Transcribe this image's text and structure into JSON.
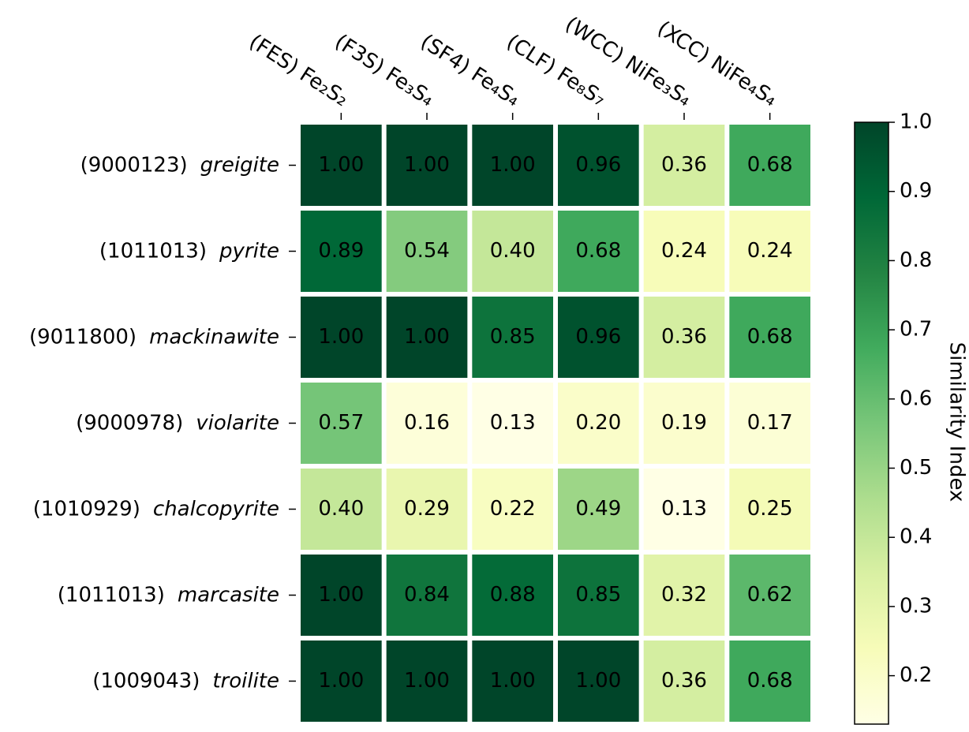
{
  "chart_data": {
    "type": "heatmap",
    "x_categories": [
      "(FES) Fe₂S₂",
      "(F3S) Fe₃S₄",
      "(SF4) Fe₄S₄",
      "(CLF) Fe₈S₇",
      "(WCC) NiFe₃S₄",
      "(XCC) NiFe₄S₄"
    ],
    "y_categories": [
      {
        "id": "(9000123)",
        "name": "greigite"
      },
      {
        "id": "(1011013)",
        "name": "pyrite"
      },
      {
        "id": "(9011800)",
        "name": "mackinawite"
      },
      {
        "id": "(9000978)",
        "name": "violarite"
      },
      {
        "id": "(1010929)",
        "name": "chalcopyrite"
      },
      {
        "id": "(1011013)",
        "name": "marcasite"
      },
      {
        "id": "(1009043)",
        "name": "troilite"
      }
    ],
    "values": [
      [
        1,
        1,
        1,
        0.96,
        0.36,
        0.68
      ],
      [
        0.89,
        0.54,
        0.4,
        0.68,
        0.24,
        0.24
      ],
      [
        1,
        1,
        0.85,
        0.96,
        0.36,
        0.68
      ],
      [
        0.57,
        0.16,
        0.13,
        0.2,
        0.19,
        0.17
      ],
      [
        0.4,
        0.29,
        0.22,
        0.49,
        0.13,
        0.25
      ],
      [
        1,
        0.84,
        0.88,
        0.85,
        0.32,
        0.62
      ],
      [
        1,
        1,
        1,
        1,
        0.36,
        0.68
      ]
    ],
    "value_labels": [
      [
        "1.00",
        "1.00",
        "1.00",
        "0.96",
        "0.36",
        "0.68"
      ],
      [
        "0.89",
        "0.54",
        "0.40",
        "0.68",
        "0.24",
        "0.24"
      ],
      [
        "1.00",
        "1.00",
        "0.85",
        "0.96",
        "0.36",
        "0.68"
      ],
      [
        "0.57",
        "0.16",
        "0.13",
        "0.20",
        "0.19",
        "0.17"
      ],
      [
        "0.40",
        "0.29",
        "0.22",
        "0.49",
        "0.13",
        "0.25"
      ],
      [
        "1.00",
        "0.84",
        "0.88",
        "0.85",
        "0.32",
        "0.62"
      ],
      [
        "1.00",
        "1.00",
        "1.00",
        "1.00",
        "0.36",
        "0.68"
      ]
    ],
    "colormap": [
      "#ffffe5",
      "#f7fcb9",
      "#d9f0a3",
      "#addd8e",
      "#78c679",
      "#41ab5d",
      "#238443",
      "#006837",
      "#004529"
    ],
    "clim": [
      0.13,
      1
    ],
    "cticks": [
      0.2,
      0.3,
      0.4,
      0.5,
      0.6,
      0.7,
      0.8,
      0.9,
      {
        "value": 1,
        "label": "1.0"
      }
    ],
    "colorbar_label": "Similarity Index"
  }
}
